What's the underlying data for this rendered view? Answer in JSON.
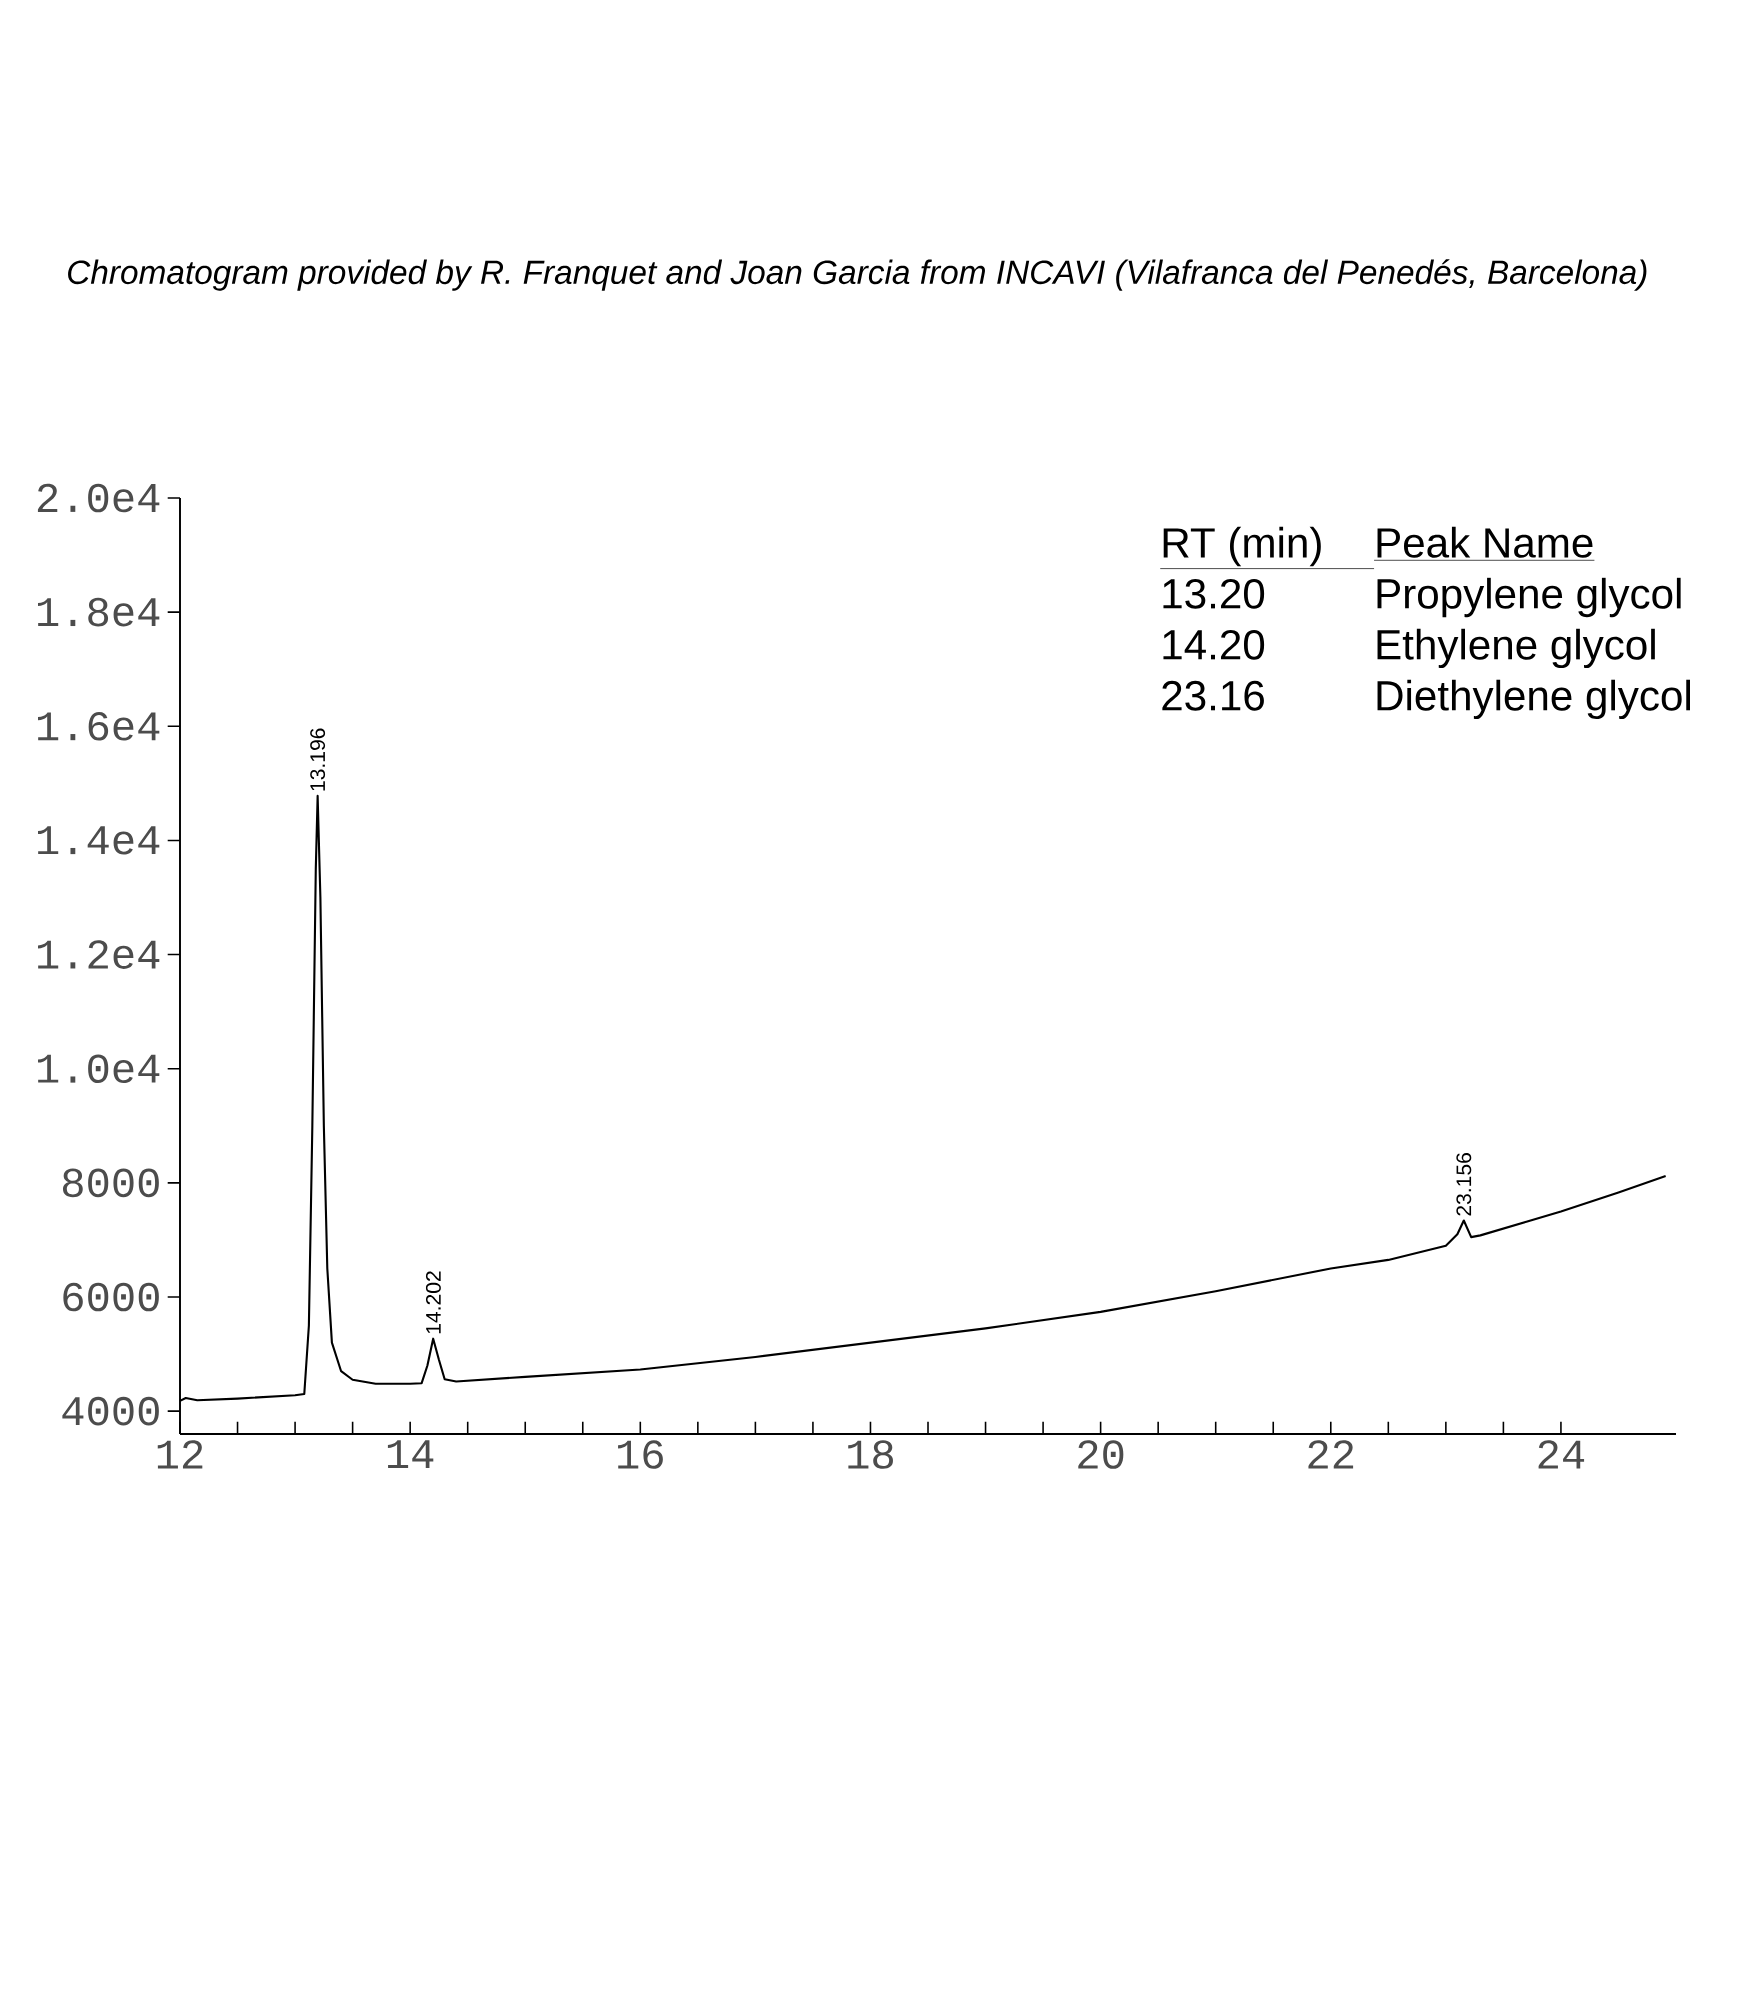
{
  "chart_data": {
    "type": "line",
    "title": "*Chromatogram provided by R. Franquet and Joan Garcia from INCAVI (Vilafranca del Penedés, Barcelona)*",
    "xlim": [
      12,
      25
    ],
    "ylim": [
      3600,
      20000
    ],
    "xticks": [
      12,
      14,
      16,
      18,
      20,
      22,
      24
    ],
    "yticks": [
      4000,
      6000,
      8000,
      {
        "value": 10000,
        "label": "1.0e4"
      },
      {
        "value": 12000,
        "label": "1.2e4"
      },
      {
        "value": 14000,
        "label": "1.4e4"
      },
      {
        "value": 16000,
        "label": "1.6e4"
      },
      {
        "value": 18000,
        "label": "1.8e4"
      },
      {
        "value": 20000,
        "label": "2.0e4"
      }
    ],
    "grid": false,
    "legend": false,
    "marker": "none",
    "line_style": "solid",
    "series": [
      {
        "color": "#000000",
        "x": [
          12.0,
          12.05,
          12.15,
          12.5,
          13.0,
          13.08,
          13.12,
          13.15,
          13.18,
          13.196,
          13.22,
          13.25,
          13.28,
          13.32,
          13.4,
          13.5,
          13.7,
          14.0,
          14.1,
          14.15,
          14.2,
          14.25,
          14.3,
          14.4,
          15.0,
          16.0,
          17.0,
          18.0,
          19.0,
          20.0,
          21.0,
          22.0,
          22.5,
          23.0,
          23.1,
          23.156,
          23.22,
          23.3,
          23.7,
          24.0,
          24.5,
          24.91
        ],
        "values": [
          4180,
          4230,
          4190,
          4220,
          4280,
          4300,
          5500,
          9000,
          13500,
          14780,
          13000,
          9000,
          6500,
          5200,
          4700,
          4550,
          4480,
          4480,
          4490,
          4800,
          5270,
          4900,
          4560,
          4520,
          4600,
          4730,
          4950,
          5200,
          5450,
          5740,
          6100,
          6500,
          6650,
          6900,
          7100,
          7340,
          7050,
          7080,
          7320,
          7500,
          7830,
          8120
        ]
      }
    ],
    "annotations": [
      {
        "text": "13.196",
        "x": 13.196,
        "y": 14780
      },
      {
        "text": "14.202",
        "x": 14.202,
        "y": 5270
      },
      {
        "text": "23.156",
        "x": 23.156,
        "y": 7340
      },
      "RT (min)",
      "Peak Name",
      "13.20",
      "Propylene glycol",
      "14.20",
      "Ethylene glycol",
      "23.16",
      "Diethylene glycol"
    ]
  }
}
